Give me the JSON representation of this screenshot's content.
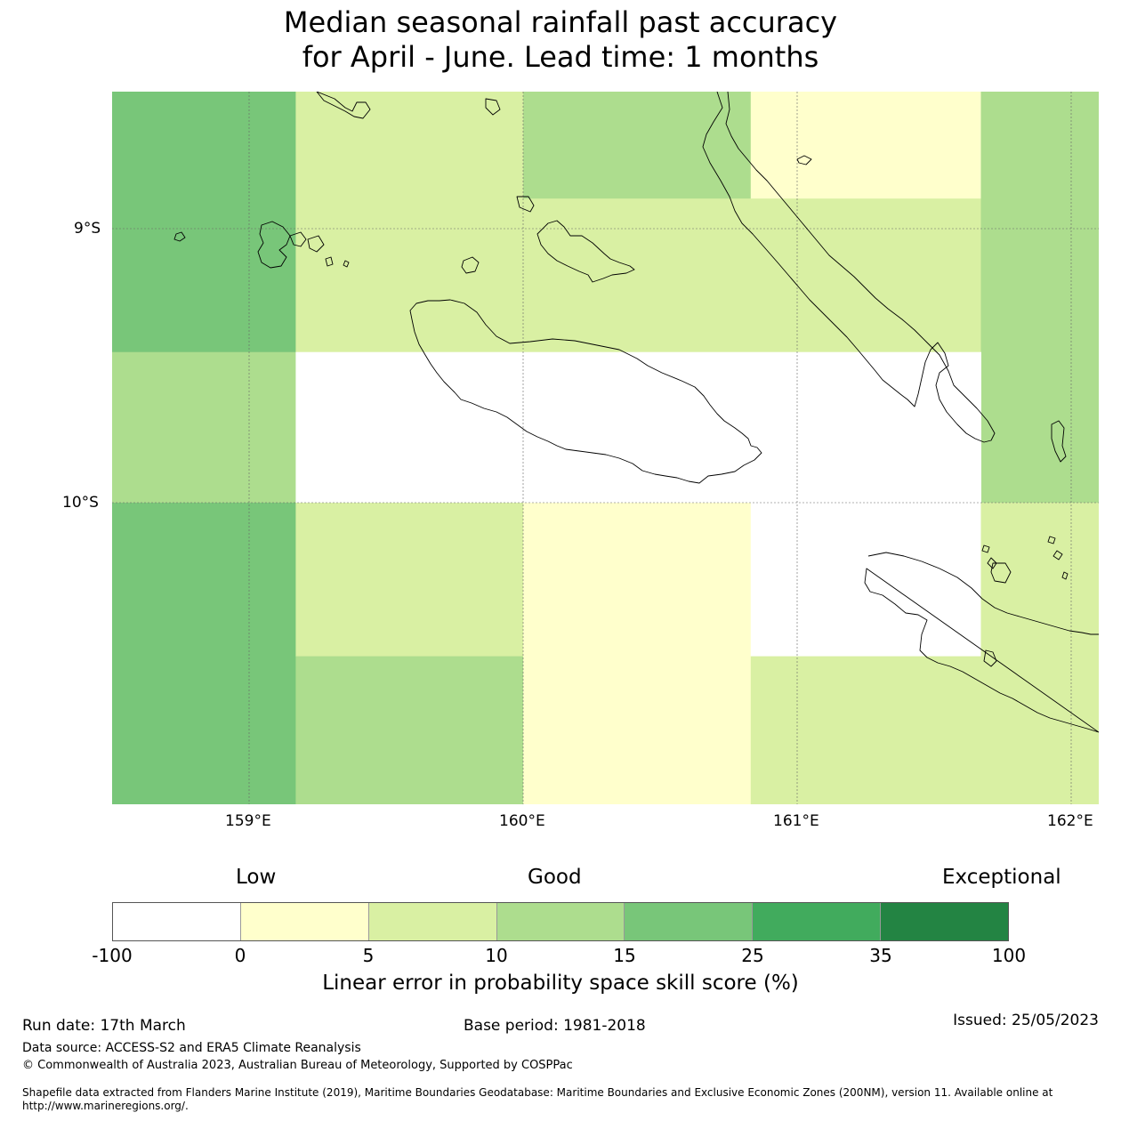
{
  "title": {
    "line1": "Median seasonal rainfall past accuracy",
    "line2": "for April - June. Lead time: 1 months"
  },
  "map": {
    "lat_labels": [
      "9°S",
      "10°S"
    ],
    "lon_labels": [
      "159°E",
      "160°E",
      "161°E",
      "162°E"
    ],
    "lon_range": [
      158.5,
      162.1
    ],
    "lat_range": [
      -8.5,
      -11.1
    ],
    "cells": [
      {
        "lon": [
          158.5,
          159.17
        ],
        "lat": [
          -8.5,
          -9.45
        ],
        "category": "15-25"
      },
      {
        "lon": [
          159.17,
          160.0
        ],
        "lat": [
          -8.5,
          -9.45
        ],
        "category": "5-10"
      },
      {
        "lon": [
          160.0,
          160.83
        ],
        "lat": [
          -8.5,
          -8.89
        ],
        "category": "10-15"
      },
      {
        "lon": [
          160.83,
          161.67
        ],
        "lat": [
          -8.5,
          -8.89
        ],
        "category": "0-5"
      },
      {
        "lon": [
          160.0,
          161.67
        ],
        "lat": [
          -8.89,
          -9.45
        ],
        "category": "5-10"
      },
      {
        "lon": [
          161.67,
          162.1
        ],
        "lat": [
          -8.5,
          -10.0
        ],
        "category": "10-15"
      },
      {
        "lon": [
          158.5,
          159.17
        ],
        "lat": [
          -9.45,
          -10.0
        ],
        "category": "10-15"
      },
      {
        "lon": [
          159.17,
          161.67
        ],
        "lat": [
          -9.45,
          -10.0
        ],
        "category": "-100-0"
      },
      {
        "lon": [
          158.5,
          159.17
        ],
        "lat": [
          -10.0,
          -11.1
        ],
        "category": "15-25"
      },
      {
        "lon": [
          159.17,
          160.0
        ],
        "lat": [
          -10.0,
          -10.56
        ],
        "category": "5-10"
      },
      {
        "lon": [
          159.17,
          160.0
        ],
        "lat": [
          -10.56,
          -11.1
        ],
        "category": "10-15"
      },
      {
        "lon": [
          160.0,
          160.83
        ],
        "lat": [
          -10.0,
          -11.1
        ],
        "category": "0-5"
      },
      {
        "lon": [
          160.83,
          161.67
        ],
        "lat": [
          -10.0,
          -10.56
        ],
        "category": "-100-0"
      },
      {
        "lon": [
          160.83,
          161.67
        ],
        "lat": [
          -10.56,
          -11.1
        ],
        "category": "5-10"
      },
      {
        "lon": [
          161.67,
          162.1
        ],
        "lat": [
          -10.0,
          -11.1
        ],
        "category": "5-10"
      }
    ]
  },
  "colorbar": {
    "headings": {
      "low": "Low",
      "good": "Good",
      "exceptional": "Exceptional"
    },
    "ticks": [
      "-100",
      "0",
      "5",
      "10",
      "15",
      "25",
      "35",
      "100"
    ],
    "categories": [
      "-100-0",
      "0-5",
      "5-10",
      "10-15",
      "15-25",
      "25-35",
      "35-100"
    ],
    "colors": [
      "#ffffff",
      "#ffffcc",
      "#d9f0a3",
      "#addd8e",
      "#78c679",
      "#41ab5d",
      "#238443"
    ],
    "label": "Linear error in probability space skill score (%)"
  },
  "footer": {
    "run_date": "Run date: 17th March",
    "base_period": "Base period: 1981-2018",
    "issued": "Issued: 25/05/2023",
    "data_source": "Data source: ACCESS-S2 and ERA5 Climate Reanalysis",
    "copyright": "© Commonwealth of Australia 2023, Australian Bureau of Meteorology, Supported by COSPPac",
    "shapefile_line1": "Shapefile data extracted from Flanders Marine Institute (2019), Maritime Boundaries Geodatabase: Maritime Boundaries and Exclusive Economic Zones (200NM), version 11. Available online at",
    "shapefile_line2": "http://www.marineregions.org/."
  }
}
